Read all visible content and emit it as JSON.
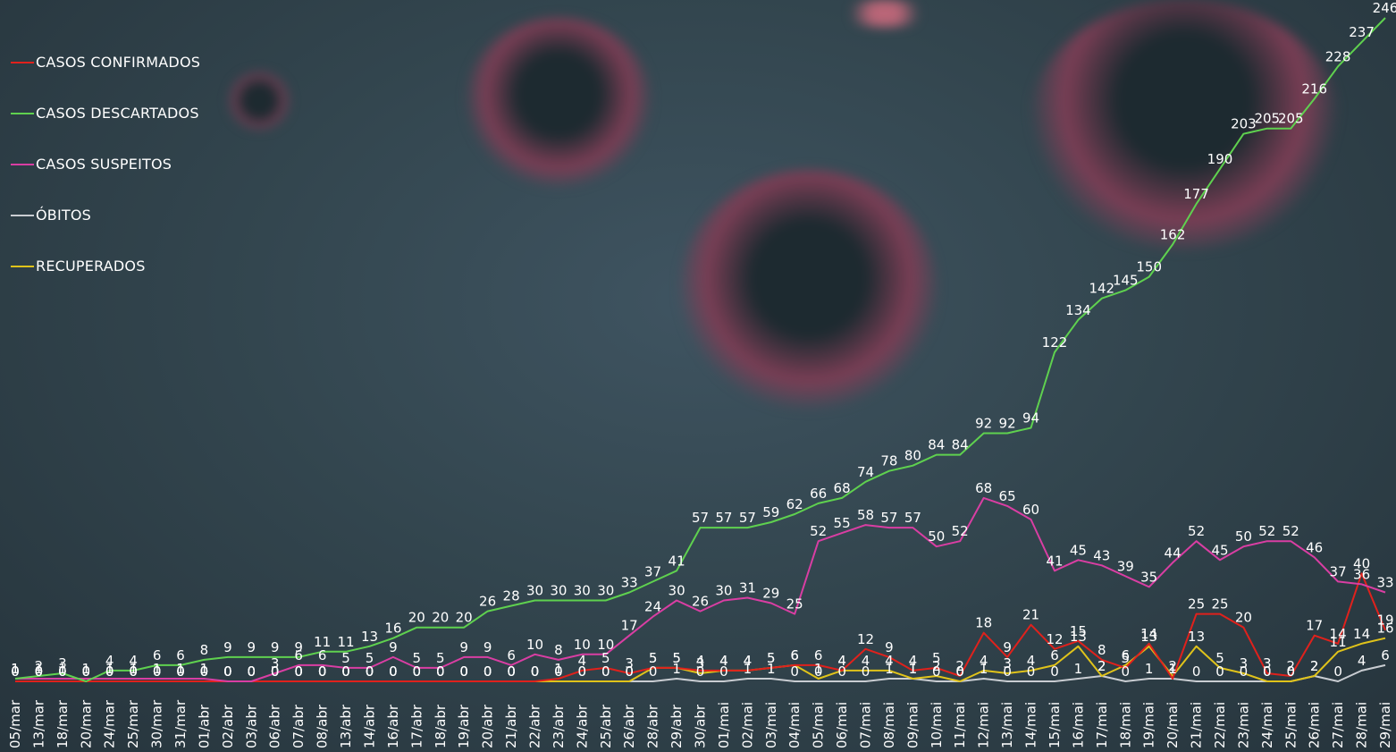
{
  "chart_data": {
    "type": "line",
    "title": "",
    "xlabel": "",
    "ylabel": "",
    "grid": false,
    "legend_position": "top-left",
    "categories": [
      "05/mar",
      "13/mar",
      "18/mar",
      "20/mar",
      "24/mar",
      "25/mar",
      "30/mar",
      "31/mar",
      "01/abr",
      "02/abr",
      "03/abr",
      "06/abr",
      "07/abr",
      "08/abr",
      "13/abr",
      "14/abr",
      "16/abr",
      "17/abr",
      "18/abr",
      "19/abr",
      "20/abr",
      "21/abr",
      "22/abr",
      "23/abr",
      "24/abr",
      "25/abr",
      "26/abr",
      "28/abr",
      "29/abr",
      "30/abr",
      "01/mai",
      "02/mai",
      "03/mai",
      "04/mai",
      "05/mai",
      "06/mai",
      "07/mai",
      "08/mai",
      "09/mai",
      "10/mai",
      "11/mai",
      "12/mai",
      "13/mai",
      "14/mai",
      "15/mai",
      "16/mai",
      "17/mai",
      "18/mai",
      "19/mai",
      "20/mai",
      "21/mai",
      "22/mai",
      "23/mai",
      "24/mai",
      "25/mai",
      "26/mai",
      "27/mai",
      "28/mai",
      "29/mai"
    ],
    "series": [
      {
        "name": "CASOS CONFIRMADOS",
        "color": "#e0211c",
        "values": [
          0,
          0,
          0,
          0,
          0,
          0,
          0,
          0,
          0,
          0,
          0,
          0,
          0,
          0,
          0,
          0,
          0,
          0,
          0,
          0,
          0,
          0,
          0,
          1,
          4,
          5,
          3,
          5,
          5,
          4,
          4,
          4,
          5,
          6,
          6,
          4,
          12,
          9,
          4,
          5,
          2,
          18,
          9,
          21,
          12,
          15,
          8,
          5,
          14,
          1,
          25,
          25,
          20,
          3,
          2,
          17,
          14,
          40,
          19
        ]
      },
      {
        "name": "CASOS DESCARTADOS",
        "color": "#5fd14f",
        "values": [
          1,
          2,
          3,
          0,
          4,
          4,
          6,
          6,
          8,
          9,
          9,
          9,
          9,
          11,
          11,
          13,
          16,
          20,
          20,
          20,
          26,
          28,
          30,
          30,
          30,
          30,
          33,
          37,
          41,
          57,
          57,
          57,
          59,
          62,
          66,
          68,
          74,
          78,
          80,
          84,
          84,
          92,
          92,
          94,
          122,
          134,
          142,
          145,
          150,
          162,
          177,
          190,
          203,
          205,
          205,
          216,
          228,
          237,
          246
        ]
      },
      {
        "name": "CASOS SUSPEITOS",
        "color": "#d93ea3",
        "values": [
          1,
          1,
          1,
          1,
          1,
          1,
          1,
          1,
          1,
          0,
          0,
          3,
          6,
          6,
          5,
          5,
          9,
          5,
          5,
          9,
          9,
          6,
          10,
          8,
          10,
          10,
          17,
          24,
          30,
          26,
          30,
          31,
          29,
          25,
          52,
          55,
          58,
          57,
          57,
          50,
          52,
          68,
          65,
          60,
          41,
          45,
          43,
          39,
          35,
          44,
          52,
          45,
          50,
          52,
          52,
          46,
          37,
          36,
          33
        ]
      },
      {
        "name": "ÓBITOS",
        "color": "#c9cdd2",
        "values": [
          0,
          0,
          0,
          0,
          0,
          0,
          0,
          0,
          0,
          0,
          0,
          0,
          0,
          0,
          0,
          0,
          0,
          0,
          0,
          0,
          0,
          0,
          0,
          0,
          0,
          0,
          0,
          0,
          1,
          0,
          0,
          1,
          1,
          0,
          0,
          0,
          0,
          1,
          1,
          0,
          0,
          1,
          0,
          0,
          0,
          1,
          2,
          0,
          1,
          1,
          0,
          0,
          0,
          0,
          0,
          2,
          0,
          4,
          6
        ]
      },
      {
        "name": "RECUPERADOS",
        "color": "#e0c31a",
        "values": [
          0,
          0,
          0,
          0,
          0,
          0,
          0,
          0,
          0,
          0,
          0,
          0,
          0,
          0,
          0,
          0,
          0,
          0,
          0,
          0,
          0,
          0,
          0,
          0,
          0,
          0,
          0,
          5,
          5,
          3,
          4,
          4,
          5,
          6,
          1,
          4,
          4,
          4,
          1,
          2,
          0,
          4,
          3,
          4,
          6,
          13,
          2,
          6,
          13,
          2,
          13,
          5,
          3,
          0,
          0,
          2,
          11,
          14,
          16
        ]
      }
    ]
  }
}
